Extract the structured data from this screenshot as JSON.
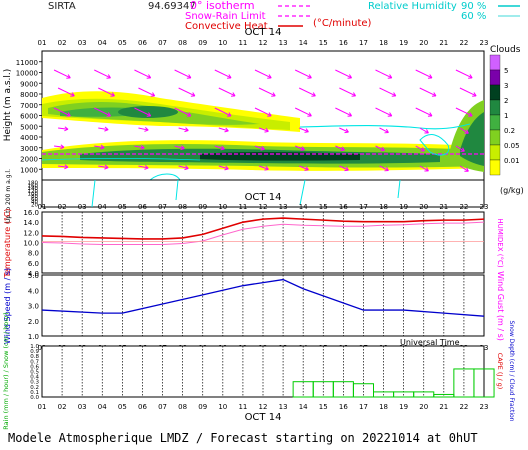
{
  "header": {
    "site": "SIRTA",
    "site_code": "94.69347",
    "legend_0c": "0° isotherm",
    "legend_snow": "Snow-Rain Limit",
    "legend_conv": "Convective Heat.",
    "legend_unit": "(°C/minute)",
    "legend_rh": "Relative Humidity",
    "rh_90": "90 %",
    "rh_60": "60 %"
  },
  "hours": [
    "01",
    "02",
    "03",
    "04",
    "05",
    "06",
    "07",
    "08",
    "09",
    "10",
    "11",
    "12",
    "13",
    "14",
    "15",
    "16",
    "17",
    "18",
    "19",
    "20",
    "21",
    "22",
    "23"
  ],
  "date_label": "OCT 14",
  "colors": {
    "magenta": "#ff00ff",
    "cyan": "#00e5e5",
    "red": "#e00000",
    "pink": "#ff66cc",
    "blue": "#0000cc",
    "green": "#00cc00",
    "cloud_scale": [
      "#ffff00",
      "#c8ee00",
      "#80d020",
      "#40b040",
      "#208840",
      "#004020",
      "#7a00aa",
      "#d060ff"
    ]
  },
  "clouds_legend": {
    "title": "Clouds",
    "ticks": [
      "5",
      "3",
      "2",
      "1",
      "0.2",
      "0.05",
      "0.01"
    ],
    "unit": "(g/kg)"
  },
  "labels": {
    "height_axis": "Height (m a.s.l.)",
    "low_axis": "Up to 200 m a.g.l.",
    "temp_axis": "Temperature (°C)",
    "humidex_axis": "HUMIDEX (°C)",
    "wind_axis": "Wind Speed (m / s)",
    "gust_axis": "Wind Gust (m / s)",
    "rain_axis": "Rain (mm / hour) / Snow (cm / hour)",
    "cape_axis": "CAPE (J / g)",
    "snowdepth_axis": "Snow Depth (cm) / Cloud Fraction",
    "universal_time": "Universal Time",
    "footer": "Modele Atmospherique LMDZ / Forecast starting on 20221014 at 0hUT"
  },
  "chart_data": [
    {
      "type": "heatmap",
      "title": "",
      "ylabel": "Height (m a.s.l.)",
      "y_ticks": [
        1000,
        2000,
        3000,
        4000,
        5000,
        6000,
        7000,
        8000,
        9000,
        10000,
        11000
      ],
      "ylim": [
        0,
        12000
      ],
      "low_y_ticks": [
        20,
        40,
        60,
        80,
        100,
        120,
        140,
        160,
        180
      ],
      "zero_isotherm_m": 2200,
      "cloud_unit": "g/kg"
    },
    {
      "type": "line",
      "ylabel": "Temperature (°C)",
      "y_ticks": [
        4.0,
        6.0,
        8.0,
        10.0,
        12.0,
        14.0,
        16.0
      ],
      "ylim": [
        4,
        16
      ],
      "x": [
        1,
        2,
        3,
        4,
        5,
        6,
        7,
        8,
        9,
        10,
        11,
        12,
        13,
        14,
        15,
        16,
        17,
        18,
        19,
        20,
        21,
        22,
        23
      ],
      "series": [
        {
          "values": [
            11.3,
            11.2,
            11.0,
            10.9,
            10.8,
            10.7,
            10.7,
            10.9,
            11.6,
            12.8,
            14.0,
            14.6,
            14.8,
            14.6,
            14.4,
            14.2,
            14.1,
            14.1,
            14.1,
            14.3,
            14.4,
            14.4,
            14.6
          ]
        },
        {
          "values": [
            10.0,
            9.9,
            9.7,
            9.6,
            9.6,
            9.6,
            9.6,
            9.8,
            10.3,
            11.5,
            12.6,
            13.2,
            13.6,
            13.4,
            13.3,
            13.2,
            13.2,
            13.4,
            13.5,
            13.7,
            13.8,
            13.8,
            14.0
          ]
        },
        {
          "values": [
            10.2,
            10.2,
            10.2,
            10.2,
            10.2,
            10.2,
            10.2,
            10.2,
            10.2,
            10.2,
            10.2,
            10.2,
            10.2,
            10.2,
            10.2,
            10.2,
            10.2,
            10.2,
            10.2,
            10.2,
            10.2,
            10.2,
            10.2
          ]
        }
      ]
    },
    {
      "type": "line",
      "ylabel": "Wind Speed (m / s)",
      "y_ticks": [
        1.0,
        2.0,
        3.0,
        4.0,
        5.0
      ],
      "ylim": [
        1,
        5
      ],
      "x": [
        1,
        4,
        5,
        7,
        9,
        11,
        13,
        14,
        17,
        19,
        21,
        23
      ],
      "series": [
        {
          "values": [
            2.7,
            2.5,
            2.5,
            3.1,
            3.7,
            4.3,
            4.7,
            4.1,
            2.7,
            2.7,
            2.5,
            2.3
          ]
        }
      ]
    },
    {
      "type": "bar",
      "ylabel": "Rain (mm / hour)",
      "y_ticks": [
        0.0,
        0.1,
        0.2,
        0.3,
        0.4,
        0.5,
        0.6,
        0.7,
        0.8,
        0.9,
        1.0
      ],
      "ylim": [
        0,
        1
      ],
      "x": [
        14,
        15,
        16,
        17,
        18,
        19,
        20,
        21,
        22,
        23
      ],
      "series": [
        {
          "values": [
            0.3,
            0.3,
            0.3,
            0.26,
            0.1,
            0.1,
            0.1,
            0.05,
            0.55,
            0.55
          ]
        }
      ]
    }
  ]
}
